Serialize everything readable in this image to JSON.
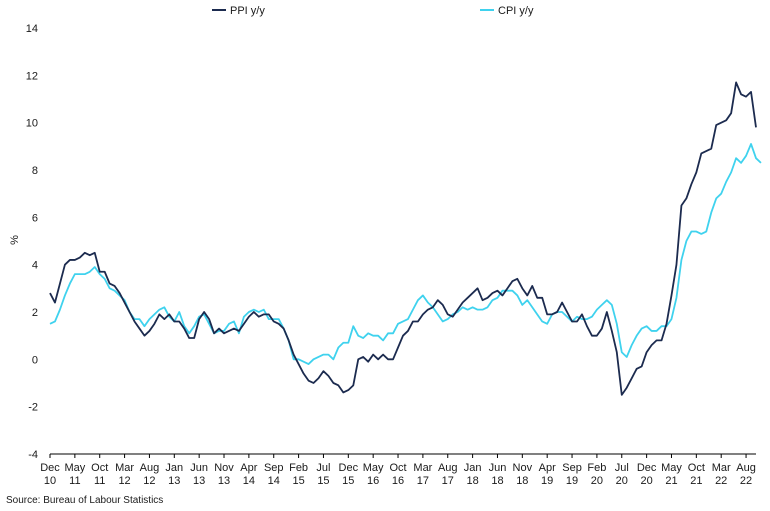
{
  "chart_data": {
    "type": "line",
    "title": "",
    "xlabel": "",
    "ylabel": "%",
    "ylim": [
      -4,
      14
    ],
    "yticks": [
      -4,
      -2,
      0,
      2,
      4,
      6,
      8,
      10,
      12,
      14
    ],
    "x_start": "Dec 2010",
    "x_end": "Aug 2022",
    "legend_position": "top",
    "x_tick_labels": [
      {
        "month": "Dec",
        "year": "10"
      },
      {
        "month": "May",
        "year": "11"
      },
      {
        "month": "Oct",
        "year": "11"
      },
      {
        "month": "Mar",
        "year": "12"
      },
      {
        "month": "Aug",
        "year": "12"
      },
      {
        "month": "Jan",
        "year": "13"
      },
      {
        "month": "Jun",
        "year": "13"
      },
      {
        "month": "Nov",
        "year": "13"
      },
      {
        "month": "Apr",
        "year": "14"
      },
      {
        "month": "Sep",
        "year": "14"
      },
      {
        "month": "Feb",
        "year": "15"
      },
      {
        "month": "Jul",
        "year": "15"
      },
      {
        "month": "Dec",
        "year": "15"
      },
      {
        "month": "May",
        "year": "16"
      },
      {
        "month": "Oct",
        "year": "16"
      },
      {
        "month": "Mar",
        "year": "17"
      },
      {
        "month": "Aug",
        "year": "17"
      },
      {
        "month": "Jan",
        "year": "18"
      },
      {
        "month": "Jun",
        "year": "18"
      },
      {
        "month": "Nov",
        "year": "18"
      },
      {
        "month": "Apr",
        "year": "19"
      },
      {
        "month": "Sep",
        "year": "19"
      },
      {
        "month": "Feb",
        "year": "20"
      },
      {
        "month": "Jul",
        "year": "20"
      },
      {
        "month": "Dec",
        "year": "20"
      },
      {
        "month": "May",
        "year": "21"
      },
      {
        "month": "Oct",
        "year": "21"
      },
      {
        "month": "Mar",
        "year": "22"
      },
      {
        "month": "Aug",
        "year": "22"
      }
    ],
    "series": [
      {
        "name": "PPI y/y",
        "color": "#1c2b4f",
        "values": [
          2.8,
          2.4,
          3.2,
          4.0,
          4.2,
          4.2,
          4.3,
          4.5,
          4.4,
          4.5,
          3.7,
          3.7,
          3.2,
          3.1,
          2.8,
          2.4,
          2.0,
          1.6,
          1.3,
          1.0,
          1.2,
          1.5,
          1.9,
          1.7,
          1.9,
          1.6,
          1.6,
          1.3,
          0.9,
          0.9,
          1.7,
          2.0,
          1.7,
          1.1,
          1.3,
          1.1,
          1.2,
          1.3,
          1.2,
          1.5,
          1.8,
          2.0,
          1.8,
          1.9,
          1.9,
          1.6,
          1.5,
          1.3,
          0.8,
          0.2,
          -0.2,
          -0.6,
          -0.9,
          -1.0,
          -0.8,
          -0.5,
          -0.7,
          -1.0,
          -1.1,
          -1.4,
          -1.3,
          -1.1,
          0.0,
          0.1,
          -0.1,
          0.2,
          0.0,
          0.2,
          0.0,
          0.0,
          0.5,
          1.0,
          1.2,
          1.6,
          1.6,
          1.9,
          2.1,
          2.2,
          2.5,
          2.3,
          1.9,
          1.8,
          2.1,
          2.4,
          2.6,
          2.8,
          3.0,
          2.5,
          2.6,
          2.8,
          2.9,
          2.7,
          3.0,
          3.3,
          3.4,
          3.0,
          2.7,
          3.1,
          2.6,
          2.6,
          1.9,
          1.9,
          2.0,
          2.4,
          2.0,
          1.6,
          1.6,
          1.9,
          1.4,
          1.0,
          1.0,
          1.3,
          2.0,
          1.2,
          0.3,
          -1.5,
          -1.2,
          -0.8,
          -0.4,
          -0.3,
          0.3,
          0.6,
          0.8,
          0.8,
          1.5,
          2.7,
          4.0,
          6.5,
          6.8,
          7.4,
          7.9,
          8.7,
          8.8,
          8.9,
          9.9,
          10.0,
          10.1,
          10.4,
          11.7,
          11.2,
          11.1,
          11.3,
          9.8
        ]
      },
      {
        "name": "CPI y/y",
        "color": "#3fd2ee",
        "values": [
          1.5,
          1.6,
          2.1,
          2.7,
          3.2,
          3.6,
          3.6,
          3.6,
          3.7,
          3.9,
          3.6,
          3.4,
          3.0,
          2.9,
          2.7,
          2.5,
          2.0,
          1.7,
          1.7,
          1.4,
          1.7,
          1.9,
          2.1,
          2.2,
          1.8,
          1.6,
          2.0,
          1.4,
          1.1,
          1.4,
          1.8,
          1.9,
          1.5,
          1.1,
          1.2,
          1.2,
          1.5,
          1.6,
          1.1,
          1.8,
          2.0,
          2.1,
          2.0,
          2.1,
          1.7,
          1.7,
          1.7,
          1.3,
          0.8,
          0.0,
          0.0,
          -0.1,
          -0.2,
          0.0,
          0.1,
          0.2,
          0.2,
          0.0,
          0.5,
          0.7,
          0.7,
          1.4,
          1.0,
          0.9,
          1.1,
          1.0,
          1.0,
          0.8,
          1.1,
          1.1,
          1.5,
          1.6,
          1.7,
          2.1,
          2.5,
          2.7,
          2.4,
          2.2,
          1.9,
          1.6,
          1.7,
          1.9,
          2.0,
          2.2,
          2.1,
          2.2,
          2.1,
          2.1,
          2.2,
          2.5,
          2.6,
          2.9,
          2.9,
          2.9,
          2.7,
          2.3,
          2.5,
          2.2,
          1.9,
          1.6,
          1.5,
          1.9,
          2.0,
          2.0,
          1.8,
          1.6,
          1.8,
          1.7,
          1.7,
          1.8,
          2.1,
          2.3,
          2.5,
          2.3,
          1.5,
          0.3,
          0.1,
          0.6,
          1.0,
          1.3,
          1.4,
          1.2,
          1.2,
          1.4,
          1.4,
          1.7,
          2.6,
          4.2,
          5.0,
          5.4,
          5.4,
          5.3,
          5.4,
          6.2,
          6.8,
          7.0,
          7.5,
          7.9,
          8.5,
          8.3,
          8.6,
          9.1,
          8.5,
          8.3
        ]
      }
    ]
  },
  "source": "Source: Bureau of Labour Statistics"
}
